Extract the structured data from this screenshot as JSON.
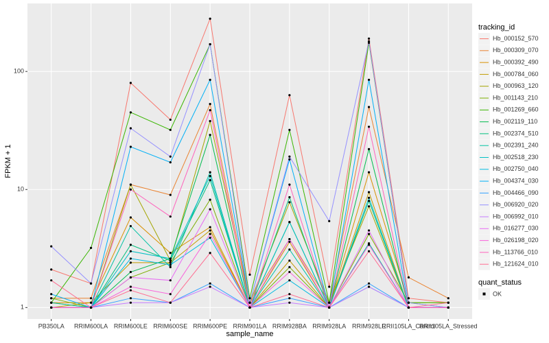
{
  "chart_data": {
    "type": "line",
    "x_label": "sample_name",
    "y_label": "FPKM + 1",
    "categories": [
      "PB350LA",
      "RRIM600LA",
      "RRIM600LE",
      "RRIM600SE",
      "RRIM600PE",
      "RRIM901LA",
      "RRIM928BA",
      "RRIM928LA",
      "RRIM928LE",
      "RRII105LA_Control",
      "RRII105LA_Stressed"
    ],
    "log_y": true,
    "ylim": [
      0.8,
      377
    ],
    "yticks": [
      1,
      10,
      100
    ],
    "grid": true,
    "legend_position": "right",
    "legend_title": "tracking_id",
    "point_color": "#000000",
    "shape_legend": {
      "title": "quant_status",
      "labels": [
        "OK"
      ]
    },
    "series": [
      {
        "name": "Hb_000152_570",
        "color": "#F8766D",
        "values": [
          2.1,
          1.6,
          80,
          39,
          280,
          1.9,
          63,
          1.5,
          190,
          1.2,
          1.1
        ]
      },
      {
        "name": "Hb_000309_070",
        "color": "#EA8331",
        "values": [
          1.2,
          1.2,
          11,
          9,
          53,
          1.1,
          3.8,
          1.1,
          50,
          1.8,
          1.2
        ]
      },
      {
        "name": "Hb_000392_490",
        "color": "#D89000",
        "values": [
          1.1,
          1.1,
          5.8,
          2.9,
          4.8,
          1.0,
          3.6,
          1.0,
          14,
          1.1,
          1.1
        ]
      },
      {
        "name": "Hb_000784_060",
        "color": "#C09B00",
        "values": [
          1.0,
          1.1,
          2.4,
          2.4,
          4.5,
          1.0,
          2.5,
          1.0,
          9.5,
          1.0,
          1.0
        ]
      },
      {
        "name": "Hb_000963_120",
        "color": "#A3A500",
        "values": [
          1.1,
          1.0,
          11,
          2.5,
          38,
          1.1,
          7.8,
          1.1,
          7.2,
          1.0,
          1.0
        ]
      },
      {
        "name": "Hb_001143_210",
        "color": "#7CAE00",
        "values": [
          1.2,
          1.0,
          1.8,
          2.4,
          8.2,
          1.0,
          2.2,
          1.0,
          4.2,
          1.1,
          1.0
        ]
      },
      {
        "name": "Hb_001269_660",
        "color": "#39B600",
        "values": [
          1.1,
          3.2,
          45,
          32,
          170,
          1.2,
          32,
          1.1,
          175,
          1.1,
          1.1
        ]
      },
      {
        "name": "Hb_002119_110",
        "color": "#00BB4E",
        "values": [
          1.0,
          1.0,
          2.0,
          2.6,
          29,
          1.0,
          5.3,
          1.0,
          22,
          1.0,
          1.0
        ]
      },
      {
        "name": "Hb_002374_510",
        "color": "#00BF7D",
        "values": [
          1.0,
          1.0,
          3.4,
          2.5,
          12,
          1.0,
          8.6,
          1.0,
          8.0,
          1.0,
          1.0
        ]
      },
      {
        "name": "Hb_002391_240",
        "color": "#00C1A3",
        "values": [
          1.1,
          1.0,
          4.9,
          2.2,
          14,
          1.0,
          3.1,
          1.0,
          3.5,
          1.0,
          1.0
        ]
      },
      {
        "name": "Hb_002518_230",
        "color": "#00BFC4",
        "values": [
          1.0,
          1.0,
          3.0,
          2.6,
          13,
          1.0,
          5.3,
          1.0,
          8.5,
          1.0,
          1.0
        ]
      },
      {
        "name": "Hb_002750_040",
        "color": "#00BAE0",
        "values": [
          1.0,
          1.0,
          2.6,
          2.3,
          3.9,
          1.0,
          1.7,
          1.0,
          1.5,
          1.0,
          1.0
        ]
      },
      {
        "name": "Hb_004374_030",
        "color": "#00B0F6",
        "values": [
          1.3,
          1.0,
          23,
          17,
          85,
          1.1,
          18,
          1.0,
          85,
          1.0,
          1.0
        ]
      },
      {
        "name": "Hb_004466_090",
        "color": "#35A2FF",
        "values": [
          1.0,
          1.0,
          1.2,
          1.1,
          1.6,
          1.0,
          1.2,
          1.0,
          1.6,
          1.0,
          1.0
        ]
      },
      {
        "name": "Hb_006920_020",
        "color": "#9590FF",
        "values": [
          3.3,
          1.6,
          33,
          19,
          170,
          1.1,
          19,
          5.4,
          180,
          1.1,
          1.0
        ]
      },
      {
        "name": "Hb_006992_010",
        "color": "#C77CFF",
        "values": [
          1.0,
          1.0,
          1.1,
          1.1,
          1.5,
          1.0,
          1.1,
          1.0,
          1.5,
          1.0,
          1.0
        ]
      },
      {
        "name": "Hb_016277_030",
        "color": "#E76BF3",
        "values": [
          1.0,
          1.0,
          1.8,
          1.7,
          6.8,
          1.0,
          3.8,
          1.0,
          4.5,
          1.0,
          1.0
        ]
      },
      {
        "name": "Hb_026198_020",
        "color": "#FA62DB",
        "values": [
          1.0,
          1.0,
          1.5,
          1.3,
          4.2,
          1.0,
          2.0,
          1.0,
          3.4,
          1.0,
          1.0
        ]
      },
      {
        "name": "Hb_113766_010",
        "color": "#FF62BC",
        "values": [
          1.0,
          1.0,
          10,
          5.9,
          47,
          1.0,
          11,
          1.0,
          34,
          1.0,
          1.0
        ]
      },
      {
        "name": "Hb_121624_010",
        "color": "#FF6C91",
        "values": [
          1.7,
          1.0,
          1.4,
          1.1,
          2.9,
          1.0,
          1.3,
          1.0,
          3.0,
          1.0,
          1.1
        ]
      }
    ]
  }
}
